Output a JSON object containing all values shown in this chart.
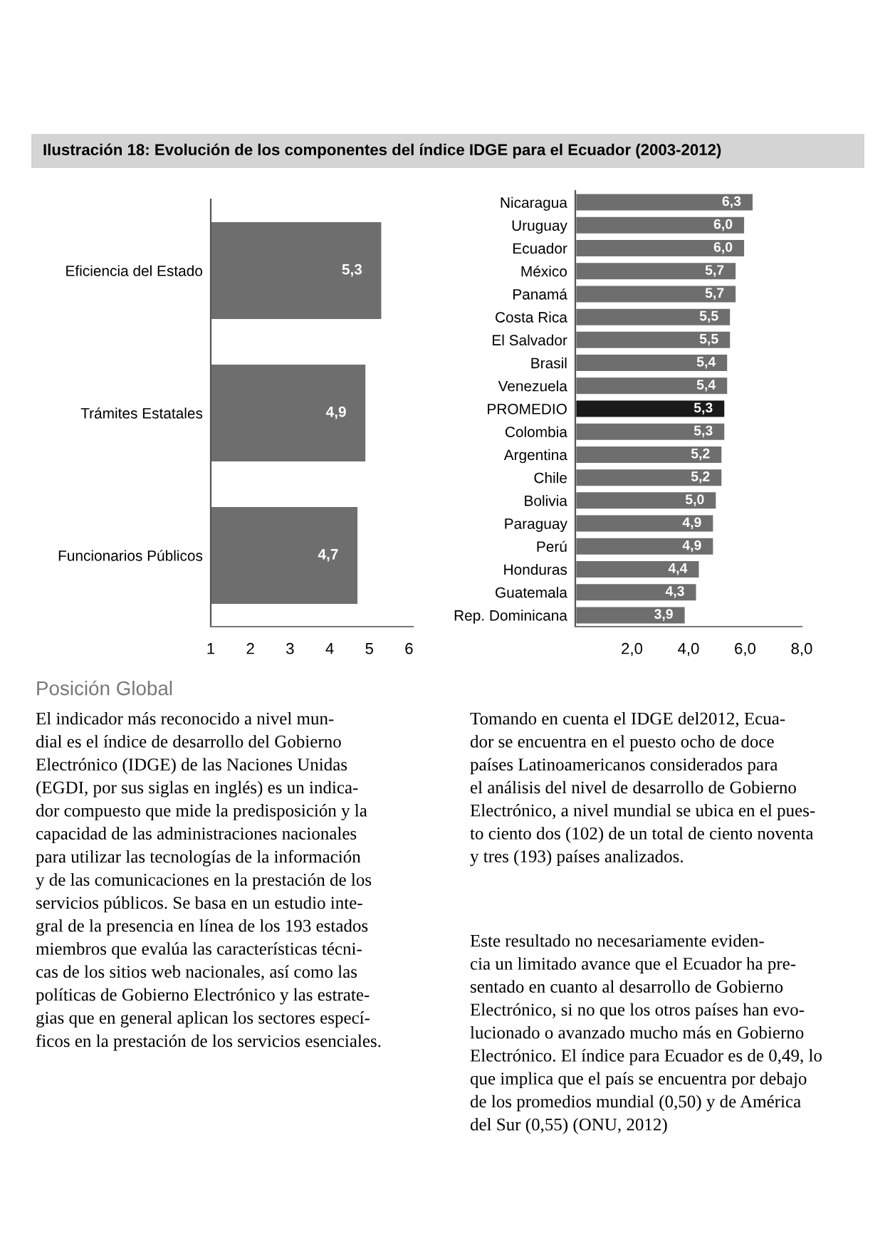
{
  "chart_data": [
    {
      "type": "bar",
      "orientation": "horizontal",
      "title": "Ilustración 18: Evolución de los componentes del índice IDGE para el Ecuador (2003-2012)",
      "categories": [
        "Eficiencia del Estado",
        "Trámites Estatales",
        "Funcionarios Públicos"
      ],
      "values": [
        5.3,
        4.9,
        4.7
      ],
      "color": "#6e6e6e",
      "value_labels": [
        "5,3",
        "4,9",
        "4,7"
      ],
      "xlim": [
        1,
        6.1
      ],
      "xticks": [
        1,
        2,
        3,
        4,
        5,
        6
      ],
      "grid": false,
      "legend": false
    },
    {
      "type": "bar",
      "orientation": "horizontal",
      "categories": [
        "Nicaragua",
        "Uruguay",
        "Ecuador",
        "México",
        "Panamá",
        "Costa Rica",
        "El Salvador",
        "Brasil",
        "Venezuela",
        "PROMEDIO",
        "Colombia",
        "Argentina",
        "Chile",
        "Bolivia",
        "Paraguay",
        "Perú",
        "Honduras",
        "Guatemala",
        "Rep. Dominicana"
      ],
      "values": [
        6.3,
        6.0,
        6.0,
        5.7,
        5.7,
        5.5,
        5.5,
        5.4,
        5.4,
        5.3,
        5.3,
        5.2,
        5.2,
        5.0,
        4.9,
        4.9,
        4.4,
        4.3,
        3.9
      ],
      "colors": [
        "#6e6e6e",
        "#6e6e6e",
        "#6e6e6e",
        "#6e6e6e",
        "#6e6e6e",
        "#6e6e6e",
        "#6e6e6e",
        "#6e6e6e",
        "#6e6e6e",
        "#1a1a1a",
        "#6e6e6e",
        "#6e6e6e",
        "#6e6e6e",
        "#6e6e6e",
        "#6e6e6e",
        "#6e6e6e",
        "#6e6e6e",
        "#6e6e6e",
        "#6e6e6e"
      ],
      "value_labels": [
        "6,3",
        "6,0",
        "6,0",
        "5,7",
        "5,7",
        "5,5",
        "5,5",
        "5,4",
        "5,4",
        "5,3",
        "5,3",
        "5,2",
        "5,2",
        "5,0",
        "4,9",
        "4,9",
        "4,4",
        "4,3",
        "3,9"
      ],
      "xlim": [
        0,
        8
      ],
      "xticks": [
        {
          "value": 2,
          "label": "2,0"
        },
        {
          "value": 4,
          "label": "4,0"
        },
        {
          "value": 6,
          "label": "6,0"
        },
        {
          "value": 8,
          "label": "8,0"
        }
      ],
      "grid": false,
      "legend": false,
      "annotations": [
        "Posición Global",
        "El indicador más reconocido a nivel mun-\ndial es el índice de desarrollo del Gobierno\nElectrónico (IDGE) de las Naciones Unidas\n(EGDI, por sus siglas en inglés) es un indica-\ndor compuesto que mide la predisposición y la\ncapacidad de las administraciones nacionales\npara utilizar las tecnologías de la información\ny de las comunicaciones en la prestación de los\nservicios públicos. Se basa en un estudio inte-\ngral de la presencia en línea de los 193 estados\nmiembros que evalúa las características técni-\ncas de los sitios web nacionales, así como las\npolíticas de Gobierno Electrónico y las estrate-\ngias que en general aplican los sectores especí-\nficos en la prestación de los servicios esenciales.",
        "Tomando en cuenta el IDGE del2012, Ecua-\ndor se encuentra en el puesto ocho de doce\npaíses Latinoamericanos considerados para\nel análisis del nivel de desarrollo de Gobierno\nElectrónico, a nivel mundial se ubica en el pues-\nto ciento dos (102) de un total de ciento noventa\ny tres (193) países analizados.",
        "Este resultado no necesariamente eviden-\ncia un limitado avance que el Ecuador ha pre-\nsentado en cuanto al desarrollo de Gobierno\nElectrónico, si no que los otros países han evo-\nlucionado o avanzado mucho más en Gobierno\nElectrónico. El índice para Ecuador es de 0,49, lo\nque implica que el país se encuentra por debajo\nde los promedios mundial (0,50) y de América\ndel Sur (0,55) (ONU, 2012)"
      ]
    }
  ]
}
